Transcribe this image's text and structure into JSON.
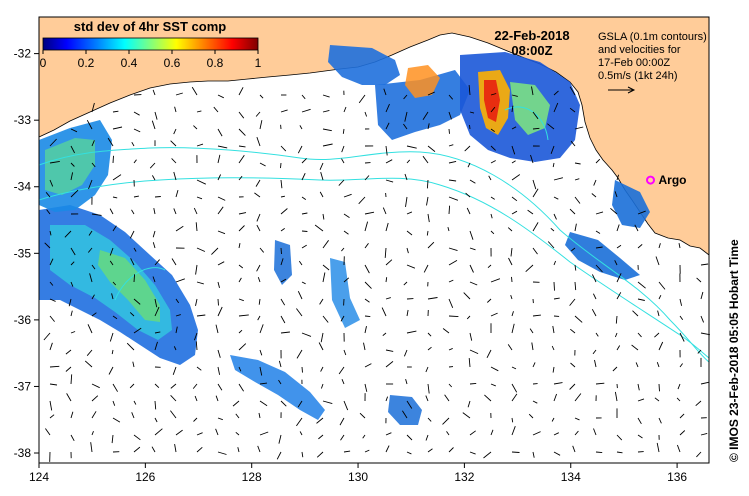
{
  "map": {
    "date": "22-Feb-2018",
    "time": "08:00Z",
    "colorbar": {
      "title": "std dev of 4hr SST comp",
      "ticks": [
        "0",
        "0.2",
        "0.4",
        "0.6",
        "0.8",
        "1"
      ],
      "range": [
        0,
        1
      ]
    },
    "legend_lines": [
      "GSLA (0.1m contours)",
      "and velocities for",
      "17-Feb 00:00Z",
      "0.5m/s (1kt 24h)"
    ],
    "marker": {
      "label": "Argo",
      "lon": 135.5,
      "lat": -33.9,
      "color": "#ff00ff"
    },
    "axes": {
      "lon_ticks": [
        "124",
        "126",
        "128",
        "130",
        "132",
        "134",
        "136"
      ],
      "lat_ticks": [
        "-32",
        "-33",
        "-34",
        "-35",
        "-36",
        "-37",
        "-38"
      ],
      "lon_range": [
        124,
        136.6
      ],
      "lat_range": [
        -38.15,
        -31.45
      ]
    },
    "credit": "© IMOS 23-Feb-2018 05:05 Hobart Time",
    "colors": {
      "land": "#ffcc99",
      "contour": "#33e0e0",
      "colormap": [
        "#00007f",
        "#0000ff",
        "#007fff",
        "#00ffff",
        "#7fff7f",
        "#ffff00",
        "#ff7f00",
        "#ff0000",
        "#7f0000"
      ]
    }
  }
}
